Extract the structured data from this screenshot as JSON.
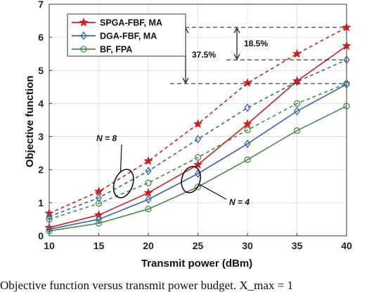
{
  "chart_data": {
    "type": "line",
    "xlabel": "Transmit power (dBm)",
    "ylabel": "Objective function",
    "x": [
      10,
      15,
      20,
      25,
      30,
      35,
      40
    ],
    "xlim": [
      10,
      40
    ],
    "ylim": [
      0,
      7
    ],
    "xticks": [
      "10",
      "15",
      "20",
      "25",
      "30",
      "35",
      "40"
    ],
    "yticks": [
      "0",
      "1",
      "2",
      "3",
      "4",
      "5",
      "6",
      "7"
    ],
    "grid": true,
    "legend_position": "top-left",
    "legend": [
      "SPGA-FBF, MA",
      "DGA-FBF, MA",
      "BF, FPA"
    ],
    "series": [
      {
        "name": "SPGA-FBF, MA",
        "group": "N = 8",
        "style": "dashed",
        "marker": "star",
        "color": "#cc1f1f",
        "values": [
          0.68,
          1.34,
          2.26,
          3.38,
          4.62,
          5.5,
          6.3
        ]
      },
      {
        "name": "DGA-FBF, MA",
        "group": "N = 8",
        "style": "dashed",
        "marker": "diamond",
        "color": "#3a62ab",
        "values": [
          0.58,
          1.15,
          1.96,
          2.92,
          3.87,
          4.66,
          5.32
        ]
      },
      {
        "name": "BF, FPA",
        "group": "N = 8",
        "style": "dashed",
        "marker": "circle",
        "color": "#4a8a4a",
        "values": [
          0.5,
          0.98,
          1.6,
          2.37,
          3.2,
          4.0,
          4.6
        ]
      },
      {
        "name": "SPGA-FBF, MA",
        "group": "N = 4",
        "style": "solid",
        "marker": "star",
        "color": "#cc1f1f",
        "values": [
          0.25,
          0.63,
          1.3,
          2.15,
          3.38,
          4.68,
          5.74
        ]
      },
      {
        "name": "DGA-FBF, MA",
        "group": "N = 4",
        "style": "solid",
        "marker": "diamond",
        "color": "#3a62ab",
        "values": [
          0.2,
          0.5,
          1.1,
          1.88,
          2.78,
          3.77,
          4.58
        ]
      },
      {
        "name": "BF, FPA",
        "group": "N = 4",
        "style": "solid",
        "marker": "circle",
        "color": "#4a8a4a",
        "values": [
          0.15,
          0.38,
          0.81,
          1.48,
          2.3,
          3.18,
          3.92
        ]
      }
    ],
    "annotations": {
      "n8_label": "N = 8",
      "n4_label": "N = 4",
      "gap_small": "18.5%",
      "gap_large": "37.5%",
      "ref_levels": [
        6.3,
        5.32,
        4.6
      ]
    }
  },
  "caption": "Objective function versus transmit power budget. X_max = 1"
}
